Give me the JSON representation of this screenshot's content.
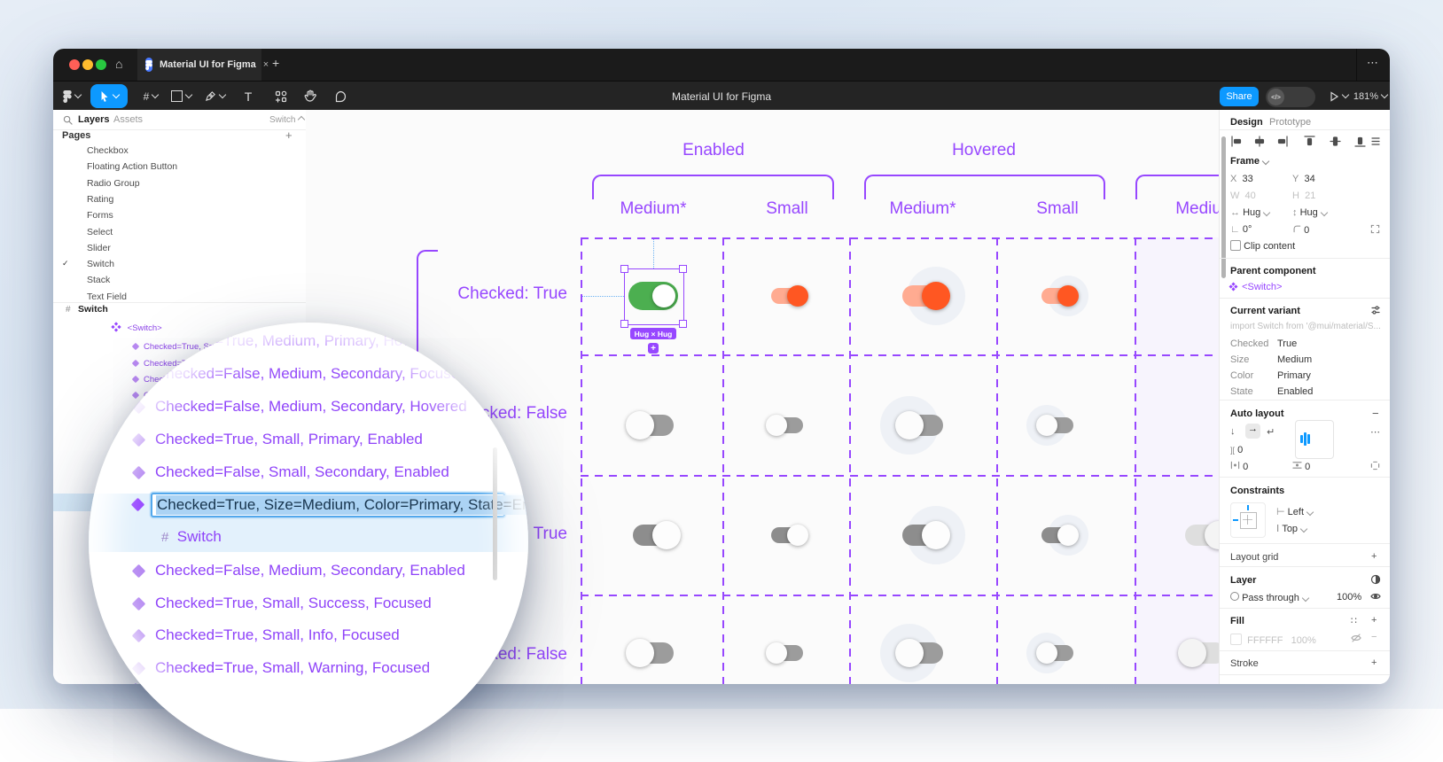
{
  "colors": {
    "accent_purple": "#9747ff",
    "figma_blue": "#0d99ff",
    "switch_green": "#4caf50",
    "switch_orange": "#ff5722",
    "switch_orange_track": "#ffab91",
    "selection_blue": "#abd3f4"
  },
  "icons": {
    "more": "⋯",
    "new_tab": "+",
    "close_tab": "×",
    "check": "✓",
    "frame_glyph": "#",
    "plus": "+",
    "minus": "−",
    "styles": "∷",
    "gap": "][",
    "dev_mode": "</>",
    "text_tool": "T",
    "home": "⌂"
  },
  "window": {
    "tab_title": "Material UI for Figma",
    "doc_title": "Material UI for Figma",
    "share_label": "Share",
    "zoom_level": "181%"
  },
  "sidebar": {
    "tabs": [
      "Layers",
      "Assets"
    ],
    "page_dropdown": "Switch",
    "pages_label": "Pages",
    "pages": [
      "Checkbox",
      "Floating Action Button",
      "Radio Group",
      "Rating",
      "Forms",
      "Select",
      "Slider",
      "Switch",
      "Stack",
      "Text Field"
    ],
    "active_page": "Switch",
    "frame_row": "Switch",
    "component_set": "<Switch>",
    "fragments": [
      "Checked=True, Small, P",
      "Checked=Tru",
      "Checke",
      "C",
      ""
    ],
    "bottom_fragments": [
      "Checked",
      "Checked"
    ]
  },
  "loupe": {
    "rows": [
      {
        "label": "Checked=True, Medium, Primary, Hovered",
        "icon": "none"
      },
      {
        "label": "Checked=False, Medium, Secondary, Focused",
        "icon": "none"
      },
      {
        "label": "Checked=False, Medium, Secondary, Hovered",
        "icon": "variant"
      },
      {
        "label": "Checked=True, Small, Primary, Enabled",
        "icon": "variant"
      },
      {
        "label": "Checked=False, Small, Secondary, Enabled",
        "icon": "variant"
      },
      {
        "label": "Checked=True, Size=Medium, Color=Primary, State=Enabled",
        "icon": "variant",
        "state": "editing"
      },
      {
        "label": "Switch",
        "icon": "frame",
        "state": "selected-child"
      },
      {
        "label": "Checked=False, Medium, Secondary, Enabled",
        "icon": "variant"
      },
      {
        "label": "Checked=True, Small, Success, Focused",
        "icon": "variant"
      },
      {
        "label": "Checked=True, Small, Info, Focused",
        "icon": "variant"
      },
      {
        "label": "Checked=True, Small, Warning, Focused",
        "icon": "variant"
      }
    ]
  },
  "canvas": {
    "group_headers": [
      "Enabled",
      "Hovered"
    ],
    "column_headers": [
      "Medium*",
      "Small",
      "Medium*",
      "Small",
      "Medium"
    ],
    "row_labels": [
      "Checked: True",
      "Checked: False",
      "Checked: True",
      "Checked: False"
    ],
    "selection": {
      "size_badge": "Hug × Hug",
      "add_badge": "+"
    },
    "switches": [
      {
        "row": 0,
        "col": 0,
        "size": "medium",
        "palette": "green",
        "checked": true,
        "hover": false,
        "selected": true
      },
      {
        "row": 0,
        "col": 1,
        "size": "small",
        "palette": "orange",
        "checked": true,
        "hover": false
      },
      {
        "row": 0,
        "col": 2,
        "size": "medium",
        "palette": "orange",
        "checked": true,
        "hover": true
      },
      {
        "row": 0,
        "col": 3,
        "size": "small",
        "palette": "orange",
        "checked": true,
        "hover": true
      },
      {
        "row": 1,
        "col": 0,
        "size": "medium",
        "palette": "gray",
        "checked": false,
        "hover": false
      },
      {
        "row": 1,
        "col": 1,
        "size": "small",
        "palette": "gray",
        "checked": false,
        "hover": false
      },
      {
        "row": 1,
        "col": 2,
        "size": "medium",
        "palette": "gray",
        "checked": false,
        "hover": true
      },
      {
        "row": 1,
        "col": 3,
        "size": "small",
        "palette": "gray",
        "checked": false,
        "hover": true
      },
      {
        "row": 2,
        "col": 0,
        "size": "medium",
        "palette": "gray",
        "checked": true,
        "hover": false
      },
      {
        "row": 2,
        "col": 1,
        "size": "small",
        "palette": "gray",
        "checked": true,
        "hover": false
      },
      {
        "row": 2,
        "col": 2,
        "size": "medium",
        "palette": "gray",
        "checked": true,
        "hover": true
      },
      {
        "row": 2,
        "col": 3,
        "size": "small",
        "palette": "gray",
        "checked": true,
        "hover": true
      },
      {
        "row": 2,
        "col": 4,
        "size": "medium",
        "palette": "light",
        "checked": true,
        "hover": false
      },
      {
        "row": 3,
        "col": 0,
        "size": "medium",
        "palette": "gray",
        "checked": false,
        "hover": false
      },
      {
        "row": 3,
        "col": 1,
        "size": "small",
        "palette": "gray",
        "checked": false,
        "hover": false
      },
      {
        "row": 3,
        "col": 2,
        "size": "medium",
        "palette": "gray",
        "checked": false,
        "hover": true
      },
      {
        "row": 3,
        "col": 3,
        "size": "small",
        "palette": "gray",
        "checked": false,
        "hover": true
      },
      {
        "row": 3,
        "col": 4,
        "size": "medium",
        "palette": "light",
        "checked": false,
        "hover": false
      }
    ]
  },
  "inspector": {
    "tab_design": "Design",
    "tab_prototype": "Prototype",
    "frame": {
      "label": "Frame",
      "x_label": "X",
      "x": "33",
      "y_label": "Y",
      "y": "34",
      "w_label": "W",
      "w": "40",
      "h_label": "H",
      "h": "21",
      "h_mode": "Hug",
      "v_mode": "Hug",
      "rotation": "0°",
      "radius": "0",
      "clip_label": "Clip content"
    },
    "parent": {
      "label": "Parent component",
      "name": "<Switch>"
    },
    "variant": {
      "label": "Current variant",
      "import_hint": "import Switch from '@mui/material/S...",
      "props": [
        [
          "Checked",
          "True"
        ],
        [
          "Size",
          "Medium"
        ],
        [
          "Color",
          "Primary"
        ],
        [
          "State",
          "Enabled"
        ]
      ]
    },
    "auto_layout": {
      "label": "Auto layout",
      "gap": "0",
      "pad_h": "0",
      "pad_v": "0"
    },
    "constraints": {
      "label": "Constraints",
      "h": "Left",
      "v": "Top"
    },
    "layout_grid": {
      "label": "Layout grid"
    },
    "layer": {
      "label": "Layer",
      "blend": "Pass through",
      "opacity": "100%"
    },
    "fill": {
      "label": "Fill",
      "hex": "FFFFFF",
      "opacity": "100%"
    },
    "stroke": {
      "label": "Stroke"
    }
  }
}
